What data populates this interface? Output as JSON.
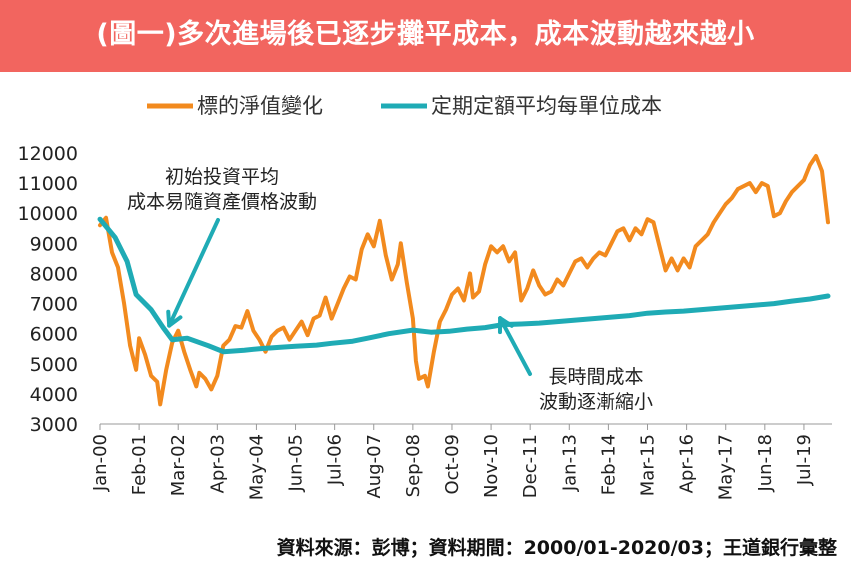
{
  "title": "(圖一)多次進場後已逐步攤平成本，成本波動越來越小",
  "source_text": "資料來源：彭博；資料期間：2000/01-2020/03；王道銀行彙整",
  "colors": {
    "banner": "#f2655f",
    "nav": "#f28a1e",
    "cost": "#1fabb5"
  },
  "chart_data": {
    "type": "line",
    "x_unit": "month",
    "x_range": [
      "2000-01",
      "2020-03"
    ],
    "ylim": [
      3000,
      12000
    ],
    "yticks": [
      3000,
      4000,
      5000,
      6000,
      7000,
      8000,
      9000,
      10000,
      11000,
      12000
    ],
    "xticks": [
      "Jan-00",
      "Feb-01",
      "Mar-02",
      "Apr-03",
      "May-04",
      "Jun-05",
      "Jul-06",
      "Aug-07",
      "Sep-08",
      "Oct-09",
      "Nov-10",
      "Dec-11",
      "Jan-13",
      "Feb-14",
      "Mar-15",
      "Apr-16",
      "May-17",
      "Jun-18",
      "Jul-19"
    ],
    "legend_position": "top",
    "grid": false,
    "series": [
      {
        "name": "標的淨值變化",
        "color": "#f28a1e",
        "points": [
          [
            "2000-01",
            9600
          ],
          [
            "2000-03",
            9850
          ],
          [
            "2000-05",
            8700
          ],
          [
            "2000-07",
            8200
          ],
          [
            "2000-09",
            7000
          ],
          [
            "2000-11",
            5600
          ],
          [
            "2001-01",
            4800
          ],
          [
            "2001-02",
            5850
          ],
          [
            "2001-04",
            5300
          ],
          [
            "2001-06",
            4600
          ],
          [
            "2001-08",
            4400
          ],
          [
            "2001-09",
            3650
          ],
          [
            "2001-11",
            4800
          ],
          [
            "2002-01",
            5700
          ],
          [
            "2002-03",
            6100
          ],
          [
            "2002-05",
            5400
          ],
          [
            "2002-07",
            4800
          ],
          [
            "2002-09",
            4250
          ],
          [
            "2002-10",
            4700
          ],
          [
            "2002-12",
            4500
          ],
          [
            "2003-02",
            4150
          ],
          [
            "2003-04",
            4600
          ],
          [
            "2003-06",
            5600
          ],
          [
            "2003-08",
            5800
          ],
          [
            "2003-10",
            6250
          ],
          [
            "2003-12",
            6200
          ],
          [
            "2004-02",
            6750
          ],
          [
            "2004-04",
            6100
          ],
          [
            "2004-06",
            5800
          ],
          [
            "2004-08",
            5400
          ],
          [
            "2004-10",
            5900
          ],
          [
            "2004-12",
            6100
          ],
          [
            "2005-02",
            6200
          ],
          [
            "2005-04",
            5800
          ],
          [
            "2005-06",
            6100
          ],
          [
            "2005-08",
            6400
          ],
          [
            "2005-10",
            5950
          ],
          [
            "2005-12",
            6500
          ],
          [
            "2006-02",
            6600
          ],
          [
            "2006-04",
            7200
          ],
          [
            "2006-06",
            6500
          ],
          [
            "2006-08",
            7000
          ],
          [
            "2006-10",
            7500
          ],
          [
            "2006-12",
            7900
          ],
          [
            "2007-02",
            7800
          ],
          [
            "2007-04",
            8800
          ],
          [
            "2007-06",
            9300
          ],
          [
            "2007-08",
            8900
          ],
          [
            "2007-10",
            9750
          ],
          [
            "2007-12",
            8600
          ],
          [
            "2008-02",
            7800
          ],
          [
            "2008-04",
            8300
          ],
          [
            "2008-05",
            9000
          ],
          [
            "2008-07",
            7700
          ],
          [
            "2008-09",
            6500
          ],
          [
            "2008-10",
            5100
          ],
          [
            "2008-11",
            4500
          ],
          [
            "2009-01",
            4600
          ],
          [
            "2009-02",
            4250
          ],
          [
            "2009-04",
            5400
          ],
          [
            "2009-06",
            6400
          ],
          [
            "2009-08",
            6800
          ],
          [
            "2009-10",
            7300
          ],
          [
            "2009-12",
            7500
          ],
          [
            "2010-02",
            7100
          ],
          [
            "2010-04",
            8000
          ],
          [
            "2010-05",
            7200
          ],
          [
            "2010-07",
            7400
          ],
          [
            "2010-09",
            8300
          ],
          [
            "2010-11",
            8900
          ],
          [
            "2011-01",
            8700
          ],
          [
            "2011-03",
            8900
          ],
          [
            "2011-05",
            8400
          ],
          [
            "2011-07",
            8700
          ],
          [
            "2011-09",
            7100
          ],
          [
            "2011-11",
            7500
          ],
          [
            "2012-01",
            8100
          ],
          [
            "2012-03",
            7600
          ],
          [
            "2012-05",
            7300
          ],
          [
            "2012-07",
            7400
          ],
          [
            "2012-09",
            7800
          ],
          [
            "2012-11",
            7600
          ],
          [
            "2013-01",
            8000
          ],
          [
            "2013-03",
            8400
          ],
          [
            "2013-05",
            8500
          ],
          [
            "2013-07",
            8200
          ],
          [
            "2013-09",
            8500
          ],
          [
            "2013-11",
            8700
          ],
          [
            "2014-01",
            8600
          ],
          [
            "2014-03",
            9000
          ],
          [
            "2014-05",
            9400
          ],
          [
            "2014-07",
            9500
          ],
          [
            "2014-09",
            9100
          ],
          [
            "2014-11",
            9500
          ],
          [
            "2015-01",
            9300
          ],
          [
            "2015-03",
            9800
          ],
          [
            "2015-05",
            9700
          ],
          [
            "2015-07",
            8900
          ],
          [
            "2015-09",
            8100
          ],
          [
            "2015-11",
            8500
          ],
          [
            "2016-01",
            8100
          ],
          [
            "2016-03",
            8500
          ],
          [
            "2016-05",
            8200
          ],
          [
            "2016-07",
            8900
          ],
          [
            "2016-09",
            9100
          ],
          [
            "2016-11",
            9300
          ],
          [
            "2017-01",
            9700
          ],
          [
            "2017-03",
            10000
          ],
          [
            "2017-05",
            10300
          ],
          [
            "2017-07",
            10500
          ],
          [
            "2017-09",
            10800
          ],
          [
            "2017-11",
            10900
          ],
          [
            "2018-01",
            11000
          ],
          [
            "2018-03",
            10700
          ],
          [
            "2018-05",
            11000
          ],
          [
            "2018-07",
            10900
          ],
          [
            "2018-09",
            9900
          ],
          [
            "2018-11",
            10000
          ],
          [
            "2019-01",
            10400
          ],
          [
            "2019-03",
            10700
          ],
          [
            "2019-05",
            10900
          ],
          [
            "2019-07",
            11100
          ],
          [
            "2019-09",
            11600
          ],
          [
            "2019-11",
            11900
          ],
          [
            "2020-01",
            11400
          ],
          [
            "2020-03",
            9700
          ]
        ]
      },
      {
        "name": "定期定額平均每單位成本",
        "color": "#1fabb5",
        "points": [
          [
            "2000-01",
            9800
          ],
          [
            "2000-06",
            9200
          ],
          [
            "2000-10",
            8400
          ],
          [
            "2001-01",
            7300
          ],
          [
            "2001-06",
            6800
          ],
          [
            "2001-10",
            6200
          ],
          [
            "2002-01",
            5800
          ],
          [
            "2002-06",
            5850
          ],
          [
            "2003-01",
            5600
          ],
          [
            "2003-06",
            5400
          ],
          [
            "2004-01",
            5450
          ],
          [
            "2004-06",
            5500
          ],
          [
            "2005-01",
            5550
          ],
          [
            "2005-06",
            5580
          ],
          [
            "2006-01",
            5620
          ],
          [
            "2006-06",
            5680
          ],
          [
            "2007-01",
            5750
          ],
          [
            "2007-06",
            5850
          ],
          [
            "2008-01",
            6000
          ],
          [
            "2008-09",
            6120
          ],
          [
            "2009-03",
            6050
          ],
          [
            "2009-09",
            6080
          ],
          [
            "2010-03",
            6150
          ],
          [
            "2010-09",
            6200
          ],
          [
            "2011-03",
            6300
          ],
          [
            "2011-09",
            6320
          ],
          [
            "2012-03",
            6350
          ],
          [
            "2012-09",
            6400
          ],
          [
            "2013-03",
            6450
          ],
          [
            "2013-09",
            6500
          ],
          [
            "2014-03",
            6550
          ],
          [
            "2014-09",
            6600
          ],
          [
            "2015-03",
            6680
          ],
          [
            "2015-09",
            6720
          ],
          [
            "2016-03",
            6750
          ],
          [
            "2016-09",
            6800
          ],
          [
            "2017-03",
            6850
          ],
          [
            "2017-09",
            6900
          ],
          [
            "2018-03",
            6950
          ],
          [
            "2018-09",
            7000
          ],
          [
            "2019-03",
            7080
          ],
          [
            "2019-09",
            7150
          ],
          [
            "2020-03",
            7250
          ]
        ]
      }
    ],
    "annotations": [
      {
        "id": "a1",
        "lines": [
          "初始投資平均",
          "成本易隨資產價格波動"
        ],
        "points_to": [
          "2001-12",
          6000
        ]
      },
      {
        "id": "a2",
        "lines": [
          "長時間成本",
          "波動逐漸縮小"
        ],
        "points_to": [
          "2011-02",
          6250
        ]
      }
    ]
  }
}
